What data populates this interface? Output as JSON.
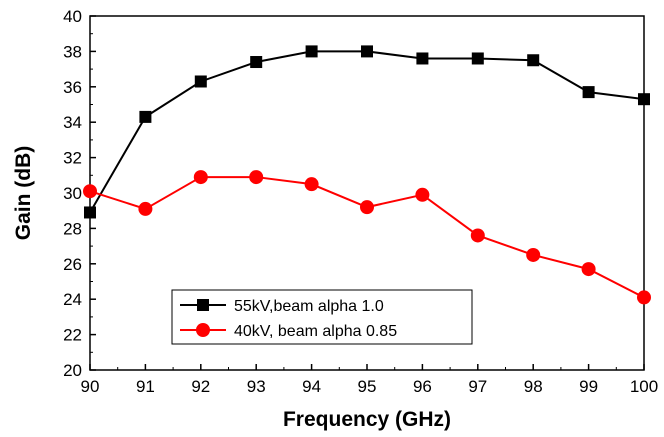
{
  "chart_data": {
    "type": "line",
    "title": "",
    "xlabel": "Frequency (GHz)",
    "ylabel": "Gain (dB)",
    "xlim": [
      90,
      100
    ],
    "ylim": [
      20,
      40
    ],
    "x_ticks": [
      90,
      91,
      92,
      93,
      94,
      95,
      96,
      97,
      98,
      99,
      100
    ],
    "y_ticks": [
      20,
      22,
      24,
      26,
      28,
      30,
      32,
      34,
      36,
      38,
      40
    ],
    "x_tick_labels": [
      "90",
      "91",
      "92",
      "93",
      "94",
      "95",
      "96",
      "97",
      "98",
      "99",
      "100"
    ],
    "y_tick_labels": [
      "20",
      "22",
      "24",
      "26",
      "28",
      "30",
      "32",
      "34",
      "36",
      "38",
      "40"
    ],
    "grid": false,
    "legend_position": "bottom-left",
    "x": [
      90,
      91,
      92,
      93,
      94,
      95,
      96,
      97,
      98,
      99,
      100
    ],
    "series": [
      {
        "name": "55kV,beam alpha 1.0",
        "color": "#000000",
        "marker": "square",
        "values": [
          28.9,
          34.3,
          36.3,
          37.4,
          38.0,
          38.0,
          37.6,
          37.6,
          37.5,
          35.7,
          35.3
        ]
      },
      {
        "name": "40kV, beam alpha 0.85",
        "color": "#ff0000",
        "marker": "circle",
        "values": [
          30.1,
          29.1,
          30.9,
          30.9,
          30.5,
          29.2,
          29.9,
          27.6,
          26.5,
          25.7,
          24.1
        ]
      }
    ]
  }
}
